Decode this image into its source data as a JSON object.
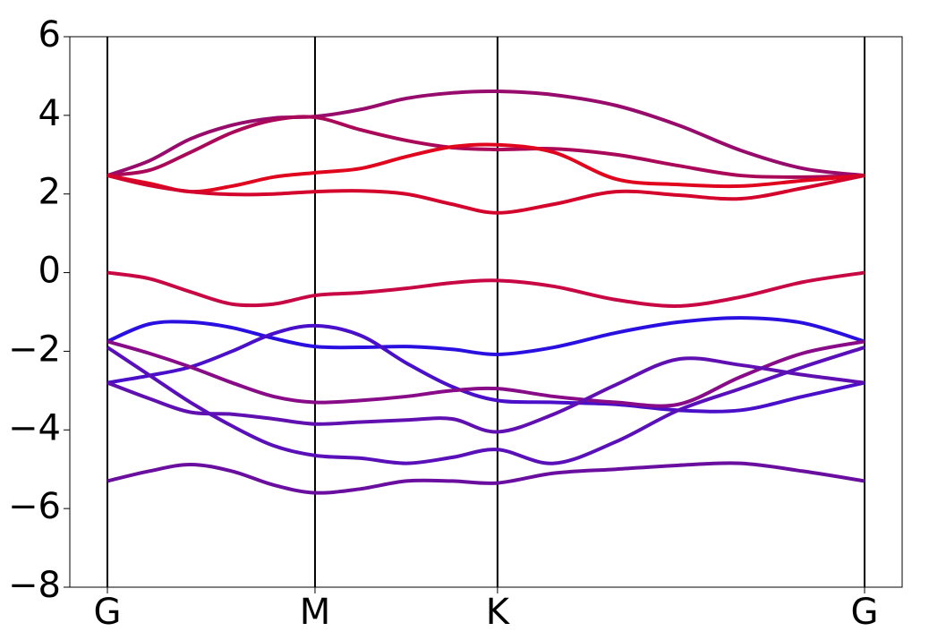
{
  "chart_data": {
    "type": "line",
    "x": [
      0,
      0.2,
      0.4,
      0.6,
      0.8,
      1.0,
      1.22,
      1.44,
      1.66,
      1.879,
      2.15,
      2.45,
      2.75,
      3.05,
      3.35,
      3.647
    ],
    "xlim": [
      -0.181,
      3.828
    ],
    "xticks": [
      {
        "value": 0,
        "label": "G"
      },
      {
        "value": 1.0,
        "label": "M"
      },
      {
        "value": 1.879,
        "label": "K"
      },
      {
        "value": 3.647,
        "label": "G"
      }
    ],
    "ylim": [
      -8,
      6
    ],
    "yticks": [
      {
        "value": -8,
        "label": "−8"
      },
      {
        "value": -6,
        "label": "−6"
      },
      {
        "value": -4,
        "label": "−4"
      },
      {
        "value": -2,
        "label": "−2"
      },
      0,
      2,
      4,
      6
    ],
    "series": [
      {
        "color": "#960b6c",
        "values": [
          2.47,
          2.84,
          3.4,
          3.75,
          3.93,
          3.97,
          4.15,
          4.43,
          4.57,
          4.61,
          4.52,
          4.25,
          3.75,
          3.11,
          2.65,
          2.47
        ]
      },
      {
        "color": "#aa0858",
        "values": [
          2.47,
          2.6,
          3.06,
          3.56,
          3.88,
          3.95,
          3.63,
          3.36,
          3.18,
          3.13,
          3.15,
          3.0,
          2.72,
          2.47,
          2.43,
          2.47
        ]
      },
      {
        "color": "#e0061e",
        "values": [
          2.47,
          2.27,
          2.06,
          2.2,
          2.43,
          2.54,
          2.65,
          2.95,
          3.2,
          3.25,
          3.06,
          2.38,
          2.24,
          2.2,
          2.34,
          2.47
        ]
      },
      {
        "color": "#d4052c",
        "values": [
          2.47,
          2.22,
          2.06,
          1.99,
          2.0,
          2.06,
          2.08,
          2.0,
          1.74,
          1.52,
          1.74,
          2.06,
          1.97,
          1.88,
          2.15,
          2.47
        ]
      },
      {
        "color": "#c80844",
        "values": [
          0,
          -0.15,
          -0.49,
          -0.8,
          -0.8,
          -0.58,
          -0.51,
          -0.4,
          -0.26,
          -0.2,
          -0.35,
          -0.69,
          -0.85,
          -0.62,
          -0.24,
          0
        ]
      },
      {
        "color": "#2a10e0",
        "values": [
          -1.75,
          -1.31,
          -1.26,
          -1.4,
          -1.67,
          -1.88,
          -1.9,
          -1.88,
          -1.95,
          -2.08,
          -1.9,
          -1.53,
          -1.26,
          -1.15,
          -1.28,
          -1.75
        ]
      },
      {
        "color": "#4a0fc8",
        "values": [
          -2.8,
          -2.62,
          -2.4,
          -2.0,
          -1.55,
          -1.35,
          -1.6,
          -2.3,
          -2.9,
          -3.25,
          -3.3,
          -3.35,
          -3.5,
          -3.5,
          -3.15,
          -2.8
        ]
      },
      {
        "color": "#880c88",
        "values": [
          -1.75,
          -2.05,
          -2.4,
          -2.8,
          -3.15,
          -3.3,
          -3.25,
          -3.15,
          -3.0,
          -2.95,
          -3.15,
          -3.3,
          -3.35,
          -2.65,
          -2.05,
          -1.75
        ]
      },
      {
        "color": "#6010b0",
        "values": [
          -2.8,
          -3.2,
          -3.55,
          -3.6,
          -3.72,
          -3.85,
          -3.8,
          -3.75,
          -3.72,
          -4.05,
          -3.6,
          -2.85,
          -2.2,
          -2.35,
          -2.6,
          -2.8
        ]
      },
      {
        "color": "#5a10b8",
        "values": [
          -1.9,
          -2.6,
          -3.3,
          -3.9,
          -4.4,
          -4.65,
          -4.72,
          -4.85,
          -4.7,
          -4.5,
          -4.85,
          -4.3,
          -3.5,
          -2.95,
          -2.4,
          -1.9
        ]
      },
      {
        "color": "#6a0ea0",
        "values": [
          -5.3,
          -5.05,
          -4.88,
          -5.05,
          -5.4,
          -5.6,
          -5.5,
          -5.3,
          -5.3,
          -5.35,
          -5.1,
          -5.0,
          -4.9,
          -4.85,
          -5.05,
          -5.3
        ]
      }
    ]
  }
}
